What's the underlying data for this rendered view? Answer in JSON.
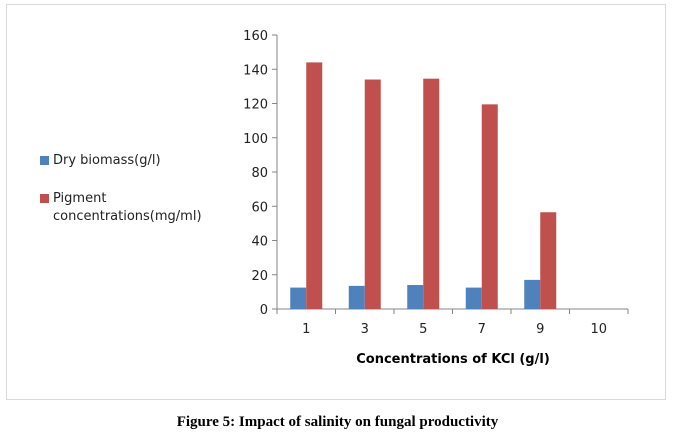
{
  "chart_data": {
    "type": "bar",
    "categories": [
      "1",
      "3",
      "5",
      "7",
      "9",
      "10"
    ],
    "series": [
      {
        "name": "Dry biomass(g/l)",
        "color": "#4f81bd",
        "values": [
          12.5,
          13.5,
          14,
          12.5,
          17,
          0
        ]
      },
      {
        "name": "Pigment concentrations(mg/ml)",
        "color": "#c0504d",
        "values": [
          144,
          134,
          134.5,
          119.5,
          56.5,
          0
        ]
      }
    ],
    "xlabel": "Concentrations of KCl (g/l)",
    "ylabel": "",
    "ylim": [
      0,
      160
    ],
    "yticks": [
      0,
      20,
      40,
      60,
      80,
      100,
      120,
      140,
      160
    ],
    "legend_position": "left",
    "grid": false
  },
  "caption": "Figure 5: Impact of salinity on fungal productivity"
}
